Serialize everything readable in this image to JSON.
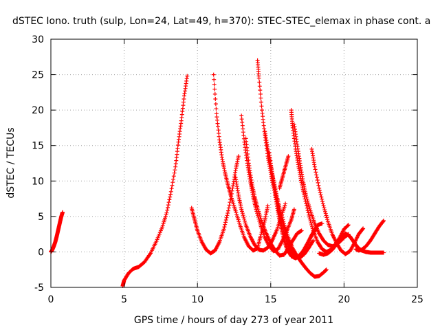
{
  "chart_data": {
    "type": "scatter",
    "title": "dSTEC Iono. truth (sulp, Lon=24, Lat=49, h=370): STEC-STEC_elemax in phase cont. a",
    "xlabel": "GPS time / hours of day 273 of year 2011",
    "ylabel": "dSTEC  / TECUs",
    "xlim": [
      0,
      25
    ],
    "ylim": [
      -5,
      30
    ],
    "x_ticks": [
      "0",
      "5",
      "10",
      "15",
      "20",
      "25"
    ],
    "y_ticks": [
      "-5",
      "0",
      "5",
      "10",
      "15",
      "20",
      "25",
      "30"
    ],
    "grid": true,
    "marker": "+",
    "colors": {
      "series": "#ff0000",
      "axes": "#000000",
      "grid": "#a0a0a0"
    },
    "series": [
      {
        "x": [
          0.0,
          0.1,
          0.2,
          0.3,
          0.4,
          0.5,
          0.6,
          0.7,
          0.8
        ],
        "y": [
          0.0,
          0.3,
          0.8,
          1.4,
          2.2,
          3.1,
          4.0,
          4.9,
          5.6
        ]
      },
      {
        "x": [
          4.9,
          5.0,
          5.3,
          5.6,
          6.0,
          6.4,
          6.8,
          7.2,
          7.6,
          7.9,
          8.2,
          8.5,
          8.7,
          8.9,
          9.1,
          9.3
        ],
        "y": [
          -4.8,
          -4.0,
          -3.0,
          -2.4,
          -2.1,
          -1.4,
          -0.2,
          1.5,
          3.5,
          5.5,
          8.5,
          12.0,
          15.5,
          18.5,
          22.0,
          24.8
        ]
      },
      {
        "x": [
          9.6,
          9.8,
          10.0,
          10.3,
          10.6,
          10.9,
          11.2,
          11.5,
          11.8,
          12.1,
          12.4,
          12.6,
          12.8
        ],
        "y": [
          6.2,
          4.6,
          3.0,
          1.4,
          0.3,
          -0.2,
          0.2,
          1.4,
          3.2,
          5.8,
          9.0,
          11.5,
          13.5
        ]
      },
      {
        "x": [
          11.1,
          11.3,
          11.5,
          11.7,
          11.9,
          12.1,
          12.3,
          12.6,
          12.9,
          13.2,
          13.5,
          13.8,
          14.1,
          14.3,
          14.6,
          14.8
        ],
        "y": [
          25.0,
          19.5,
          15.8,
          13.0,
          11.0,
          9.3,
          7.8,
          5.8,
          3.8,
          2.0,
          0.8,
          0.2,
          0.5,
          2.2,
          4.5,
          6.5
        ]
      },
      {
        "x": [
          12.6,
          12.8,
          13.0,
          13.3,
          13.6,
          13.9,
          14.2,
          14.5,
          14.8,
          15.1,
          15.4,
          15.7,
          16.0
        ],
        "y": [
          10.5,
          8.0,
          6.0,
          3.8,
          2.2,
          1.0,
          0.3,
          0.2,
          0.6,
          1.6,
          3.0,
          4.8,
          6.8
        ]
      },
      {
        "x": [
          13.0,
          13.2,
          13.4,
          13.6,
          13.8,
          14.0,
          14.3,
          14.6,
          14.9,
          15.2,
          15.5,
          15.8,
          16.1,
          16.4,
          16.6
        ],
        "y": [
          19.2,
          15.5,
          12.5,
          10.0,
          7.8,
          6.0,
          3.8,
          2.0,
          0.8,
          0.1,
          0.4,
          1.6,
          3.0,
          4.5,
          6.0
        ]
      },
      {
        "x": [
          13.3,
          13.5,
          13.7,
          13.9,
          14.1,
          14.4,
          14.7,
          15.0,
          15.3,
          15.6,
          15.9,
          16.2,
          16.5,
          16.8,
          17.1
        ],
        "y": [
          16.0,
          12.5,
          9.8,
          7.8,
          6.2,
          4.2,
          2.6,
          1.2,
          0.2,
          -0.5,
          -0.4,
          0.5,
          1.6,
          2.6,
          3.0
        ]
      },
      {
        "x": [
          14.1,
          14.2,
          14.4,
          14.6,
          14.8,
          15.0,
          15.2,
          15.5,
          15.8,
          16.1,
          16.4,
          16.7,
          17.0,
          17.3,
          17.6,
          17.9
        ],
        "y": [
          27.0,
          24.5,
          20.0,
          16.5,
          13.5,
          11.2,
          9.0,
          6.5,
          4.2,
          2.0,
          0.5,
          -0.5,
          -0.8,
          -0.3,
          0.6,
          1.6
        ]
      },
      {
        "x": [
          14.6,
          14.8,
          15.0,
          15.2,
          15.4,
          15.6,
          15.9,
          16.2,
          16.5,
          16.8,
          17.1,
          17.4,
          17.7,
          18.0,
          18.3,
          18.6,
          18.8
        ],
        "y": [
          17.0,
          14.5,
          12.2,
          10.0,
          8.0,
          6.2,
          4.0,
          2.0,
          0.5,
          -0.6,
          -1.5,
          -2.3,
          -3.0,
          -3.5,
          -3.4,
          -2.9,
          -2.5
        ]
      },
      {
        "x": [
          14.9,
          15.1,
          15.3,
          15.5,
          15.7,
          16.0,
          16.3,
          16.6,
          16.9,
          17.2,
          17.5,
          17.8,
          18.1
        ],
        "y": [
          14.0,
          11.0,
          8.5,
          6.2,
          4.2,
          2.0,
          0.4,
          -0.5,
          -0.6,
          0.1,
          1.2,
          2.4,
          3.2
        ]
      },
      {
        "x": [
          15.3,
          15.5,
          15.7,
          15.9,
          16.1,
          16.4,
          16.7,
          17.0,
          17.3,
          17.6,
          17.9,
          18.2,
          18.5
        ],
        "y": [
          8.0,
          5.5,
          3.5,
          1.8,
          0.4,
          -0.6,
          -0.9,
          -0.5,
          0.3,
          1.5,
          2.8,
          3.8,
          4.0
        ]
      },
      {
        "x": [
          15.6,
          15.8,
          16.0,
          16.2
        ],
        "y": [
          9.0,
          10.5,
          12.0,
          13.5
        ]
      },
      {
        "x": [
          16.4,
          16.5,
          16.7,
          16.9,
          17.1,
          17.3,
          17.6,
          17.9,
          18.2,
          18.5,
          18.8,
          19.1,
          19.4,
          19.7,
          20.0,
          20.3
        ],
        "y": [
          20.0,
          17.5,
          14.5,
          12.0,
          9.8,
          7.8,
          5.2,
          3.0,
          1.4,
          0.4,
          0.0,
          0.3,
          1.0,
          2.0,
          3.2,
          3.8
        ]
      },
      {
        "x": [
          16.6,
          16.8,
          17.0,
          17.2,
          17.4,
          17.7,
          18.0,
          18.3,
          18.6,
          18.9,
          19.2,
          19.5,
          19.8,
          20.1,
          20.3
        ],
        "y": [
          18.0,
          15.2,
          12.5,
          10.0,
          8.0,
          5.8,
          4.0,
          2.6,
          1.6,
          1.0,
          0.8,
          1.0,
          1.6,
          2.2,
          2.5
        ]
      },
      {
        "x": [
          17.8,
          18.0,
          18.3,
          18.6,
          18.9,
          19.2,
          19.5,
          19.8,
          20.1,
          20.4,
          20.7,
          21.0,
          21.3
        ],
        "y": [
          14.5,
          12.0,
          9.0,
          6.5,
          4.3,
          2.5,
          1.2,
          0.2,
          -0.3,
          0.1,
          1.2,
          2.5,
          3.3
        ]
      },
      {
        "x": [
          18.3,
          18.6,
          18.9,
          19.2,
          19.5,
          19.8,
          20.1,
          20.4,
          20.6,
          20.8,
          21.0,
          21.2,
          21.5,
          21.8,
          22.1,
          22.4,
          22.7
        ],
        "y": [
          -0.2,
          -0.4,
          -0.2,
          0.3,
          1.1,
          1.9,
          2.6,
          2.2,
          1.6,
          1.0,
          0.5,
          0.2,
          0.0,
          -0.1,
          -0.1,
          -0.1,
          -0.1
        ]
      },
      {
        "x": [
          20.8,
          21.0,
          21.2,
          21.5,
          21.8,
          22.1,
          22.4,
          22.7
        ],
        "y": [
          0.4,
          0.2,
          0.3,
          0.8,
          1.6,
          2.6,
          3.6,
          4.4
        ]
      }
    ]
  }
}
